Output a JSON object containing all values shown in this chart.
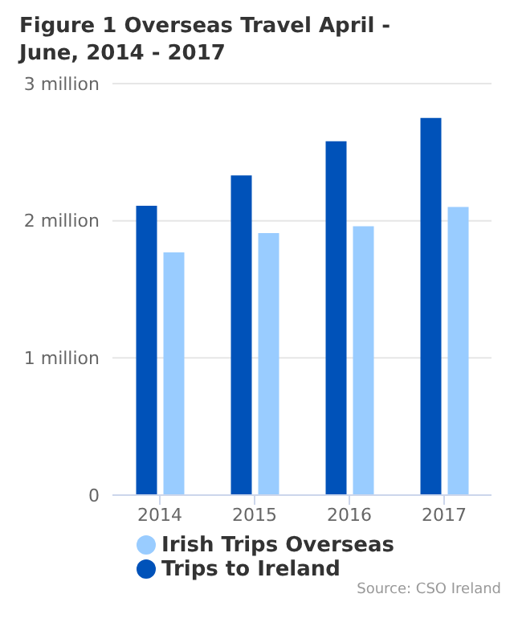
{
  "chart_data": {
    "type": "bar",
    "title": "Figure 1 Overseas Travel April - June, 2014 - 2017",
    "categories": [
      "2014",
      "2015",
      "2016",
      "2017"
    ],
    "series": [
      {
        "name": "Trips to Ireland",
        "color": "#0052b9",
        "values": [
          2.11,
          2.33,
          2.58,
          2.75
        ]
      },
      {
        "name": "Irish Trips Overseas",
        "color": "#99ccff",
        "values": [
          1.77,
          1.91,
          1.96,
          2.1
        ]
      }
    ],
    "ylim": [
      0,
      3
    ],
    "yticks": [
      0,
      {
        "value": 1,
        "label": "1 million"
      },
      {
        "value": 2,
        "label": "2 million"
      },
      {
        "value": 3,
        "label": "3 million"
      }
    ],
    "grid": "y",
    "legend": "bottom",
    "annotations": [
      "Source: CSO Ireland"
    ]
  }
}
